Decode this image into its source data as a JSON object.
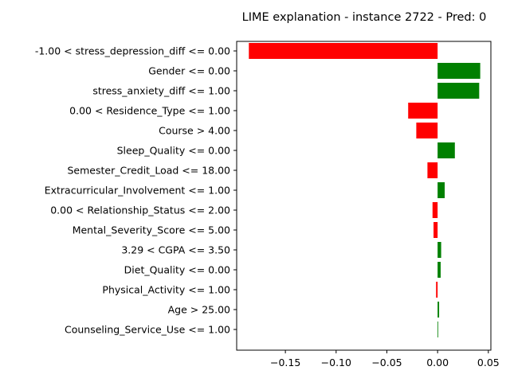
{
  "chart_data": {
    "type": "bar",
    "orientation": "horizontal",
    "title": "LIME explanation - instance 2722 - Pred: 0",
    "xlabel": "",
    "ylabel": "",
    "xlim": [
      -0.198,
      0.0525
    ],
    "xticks": [
      -0.15,
      -0.1,
      -0.05,
      0.0,
      0.05
    ],
    "xtick_labels": [
      "−0.15",
      "−0.10",
      "−0.05",
      "0.00",
      "0.05"
    ],
    "grid": false,
    "positive_color": "#008000",
    "negative_color": "#ff0000",
    "categories": [
      "-1.00 < stress_depression_diff <= 0.00",
      "Gender <= 0.00",
      "stress_anxiety_diff <= 1.00",
      "0.00 < Residence_Type <= 1.00",
      "Course > 4.00",
      "Sleep_Quality <= 0.00",
      "Semester_Credit_Load <= 18.00",
      "Extracurricular_Involvement <= 1.00",
      "0.00 < Relationship_Status <= 2.00",
      "Mental_Severity_Score <= 5.00",
      "3.29 < CGPA <= 3.50",
      "Diet_Quality <= 0.00",
      "Physical_Activity <= 1.00",
      "Age > 25.00",
      "Counseling_Service_Use <= 1.00"
    ],
    "values": [
      -0.186,
      0.042,
      0.041,
      -0.029,
      -0.021,
      0.017,
      -0.01,
      0.007,
      -0.005,
      -0.004,
      0.0035,
      0.003,
      -0.0015,
      0.0015,
      0.0005
    ]
  }
}
